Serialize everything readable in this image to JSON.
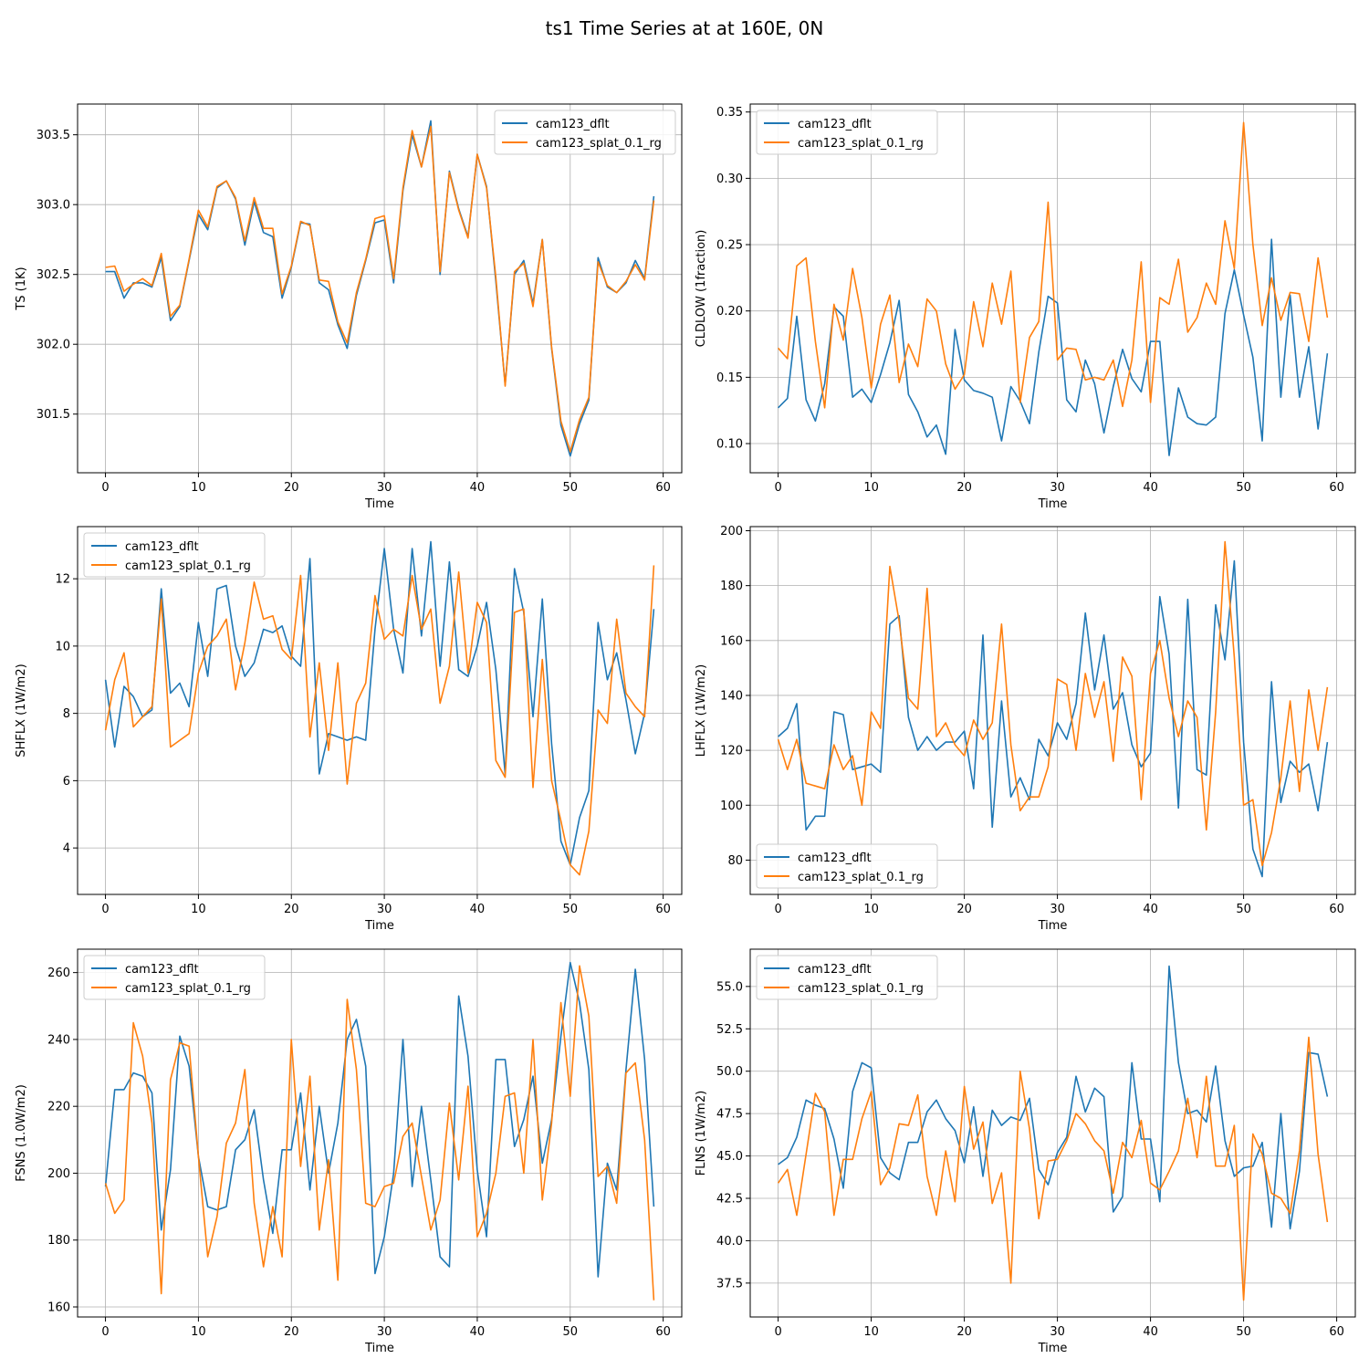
{
  "figure_title": "ts1 Time Series at at 160E, 0N",
  "colors": {
    "series1": "#1f77b4",
    "series2": "#ff7f0e",
    "grid": "#b0b0b0",
    "axis": "#000000"
  },
  "chart_data": [
    {
      "type": "line",
      "xlabel": "Time",
      "ylabel": "TS (1K)",
      "xlim": [
        -3,
        62
      ],
      "ylim": [
        301.08,
        303.72
      ],
      "xticks": [
        0,
        10,
        20,
        30,
        40,
        50,
        60
      ],
      "yticks": [
        301.5,
        302.0,
        302.5,
        303.0,
        303.5
      ],
      "ytick_labels": [
        "301.5",
        "302.0",
        "302.5",
        "303.0",
        "303.5"
      ],
      "grid": true,
      "legend": "top-right",
      "series": [
        {
          "name": "cam123_dflt",
          "values": [
            302.52,
            302.52,
            302.33,
            302.44,
            302.44,
            302.41,
            302.62,
            302.17,
            302.27,
            302.6,
            302.93,
            302.82,
            303.12,
            303.17,
            303.04,
            302.71,
            303.02,
            302.8,
            302.77,
            302.33,
            302.55,
            302.87,
            302.86,
            302.44,
            302.39,
            302.14,
            301.97,
            302.35,
            302.6,
            302.87,
            302.89,
            302.44,
            303.1,
            303.5,
            303.27,
            303.6,
            302.5,
            303.24,
            302.97,
            302.77,
            303.36,
            303.13,
            302.45,
            301.71,
            302.5,
            302.6,
            302.29,
            302.75,
            301.97,
            301.42,
            301.2,
            301.43,
            301.6,
            302.62,
            302.41,
            302.37,
            302.44,
            302.6,
            302.47,
            303.06
          ]
        },
        {
          "name": "cam123_splat_0.1_rg",
          "values": [
            302.55,
            302.56,
            302.38,
            302.43,
            302.47,
            302.42,
            302.65,
            302.2,
            302.28,
            302.61,
            302.96,
            302.84,
            303.13,
            303.17,
            303.05,
            302.74,
            303.05,
            302.83,
            302.83,
            302.36,
            302.56,
            302.88,
            302.85,
            302.46,
            302.45,
            302.16,
            302.01,
            302.37,
            302.61,
            302.9,
            302.92,
            302.47,
            303.12,
            303.53,
            303.27,
            303.56,
            302.52,
            303.23,
            302.96,
            302.76,
            303.36,
            303.12,
            302.48,
            301.7,
            302.52,
            302.58,
            302.27,
            302.75,
            301.98,
            301.45,
            301.23,
            301.46,
            301.62,
            302.59,
            302.42,
            302.37,
            302.45,
            302.57,
            302.46,
            303.03
          ]
        }
      ]
    },
    {
      "type": "line",
      "xlabel": "Time",
      "ylabel": "CLDLOW (1fraction)",
      "xlim": [
        -3,
        62
      ],
      "ylim": [
        0.078,
        0.356
      ],
      "xticks": [
        0,
        10,
        20,
        30,
        40,
        50,
        60
      ],
      "yticks": [
        0.1,
        0.15,
        0.2,
        0.25,
        0.3,
        0.35
      ],
      "ytick_labels": [
        "0.10",
        "0.15",
        "0.20",
        "0.25",
        "0.30",
        "0.35"
      ],
      "grid": true,
      "legend": "top-left",
      "series": [
        {
          "name": "cam123_dflt",
          "values": [
            0.127,
            0.134,
            0.196,
            0.133,
            0.117,
            0.145,
            0.203,
            0.196,
            0.135,
            0.141,
            0.131,
            0.152,
            0.176,
            0.208,
            0.137,
            0.124,
            0.105,
            0.114,
            0.092,
            0.186,
            0.148,
            0.14,
            0.138,
            0.135,
            0.102,
            0.143,
            0.132,
            0.115,
            0.169,
            0.211,
            0.206,
            0.133,
            0.124,
            0.163,
            0.145,
            0.108,
            0.143,
            0.171,
            0.149,
            0.139,
            0.177,
            0.177,
            0.091,
            0.142,
            0.12,
            0.115,
            0.114,
            0.12,
            0.198,
            0.231,
            0.197,
            0.165,
            0.102,
            0.254,
            0.135,
            0.212,
            0.135,
            0.173,
            0.111,
            0.168
          ]
        },
        {
          "name": "cam123_splat_0.1_rg",
          "values": [
            0.172,
            0.164,
            0.234,
            0.24,
            0.177,
            0.127,
            0.205,
            0.178,
            0.232,
            0.195,
            0.142,
            0.19,
            0.212,
            0.146,
            0.175,
            0.158,
            0.209,
            0.2,
            0.16,
            0.141,
            0.152,
            0.207,
            0.173,
            0.221,
            0.19,
            0.23,
            0.131,
            0.18,
            0.192,
            0.282,
            0.163,
            0.172,
            0.171,
            0.148,
            0.15,
            0.148,
            0.163,
            0.128,
            0.163,
            0.237,
            0.131,
            0.21,
            0.205,
            0.239,
            0.184,
            0.195,
            0.221,
            0.205,
            0.268,
            0.232,
            0.342,
            0.25,
            0.189,
            0.225,
            0.193,
            0.214,
            0.213,
            0.177,
            0.24,
            0.195
          ]
        }
      ]
    },
    {
      "type": "line",
      "xlabel": "Time",
      "ylabel": "SHFLX (1W/m2)",
      "xlim": [
        -3,
        62
      ],
      "ylim": [
        2.62,
        13.55
      ],
      "xticks": [
        0,
        10,
        20,
        30,
        40,
        50,
        60
      ],
      "yticks": [
        4,
        6,
        8,
        10,
        12
      ],
      "ytick_labels": [
        "4",
        "6",
        "8",
        "10",
        "12"
      ],
      "grid": true,
      "legend": "top-left",
      "series": [
        {
          "name": "cam123_dflt",
          "values": [
            9.0,
            7.0,
            8.8,
            8.5,
            7.9,
            8.1,
            11.7,
            8.6,
            8.9,
            8.2,
            10.7,
            9.1,
            11.7,
            11.8,
            10.0,
            9.1,
            9.5,
            10.5,
            10.4,
            10.6,
            9.7,
            9.4,
            12.6,
            6.2,
            7.4,
            7.3,
            7.2,
            7.3,
            7.2,
            10.5,
            12.9,
            10.5,
            9.2,
            12.9,
            10.3,
            13.1,
            9.4,
            12.5,
            9.3,
            9.1,
            10.0,
            11.3,
            9.3,
            6.2,
            12.3,
            11.0,
            7.9,
            11.4,
            7.1,
            4.2,
            3.5,
            4.9,
            5.7,
            10.7,
            9.0,
            9.8,
            8.4,
            6.8,
            8.0,
            11.1
          ]
        },
        {
          "name": "cam123_splat_0.1_rg",
          "values": [
            7.5,
            9.0,
            9.8,
            7.6,
            7.9,
            8.2,
            11.4,
            7.0,
            7.2,
            7.4,
            9.2,
            10.0,
            10.3,
            10.8,
            8.7,
            10.1,
            11.9,
            10.8,
            10.9,
            9.9,
            9.6,
            12.1,
            7.3,
            9.5,
            6.9,
            9.5,
            5.9,
            8.3,
            8.9,
            11.5,
            10.2,
            10.5,
            10.3,
            12.1,
            10.5,
            11.1,
            8.3,
            9.4,
            12.2,
            9.2,
            11.3,
            10.7,
            6.6,
            6.1,
            11.0,
            11.1,
            5.8,
            9.6,
            6.0,
            4.8,
            3.5,
            3.2,
            4.5,
            8.1,
            7.7,
            10.8,
            8.6,
            8.2,
            7.9,
            12.4
          ]
        }
      ]
    },
    {
      "type": "line",
      "xlabel": "Time",
      "ylabel": "LHFLX (1W/m2)",
      "xlim": [
        -3,
        62
      ],
      "ylim": [
        67.5,
        201.5
      ],
      "xticks": [
        0,
        10,
        20,
        30,
        40,
        50,
        60
      ],
      "yticks": [
        80,
        100,
        120,
        140,
        160,
        180,
        200
      ],
      "ytick_labels": [
        "80",
        "100",
        "120",
        "140",
        "160",
        "180",
        "200"
      ],
      "grid": true,
      "legend": "bottom-left",
      "series": [
        {
          "name": "cam123_dflt",
          "values": [
            125,
            128,
            137,
            91,
            96,
            96,
            134,
            133,
            113,
            114,
            115,
            112,
            166,
            169,
            132,
            120,
            125,
            120,
            123,
            123,
            127,
            106,
            162,
            92,
            138,
            103,
            110,
            102,
            124,
            118,
            130,
            124,
            137,
            170,
            142,
            162,
            135,
            141,
            122,
            114,
            119,
            176,
            155,
            99,
            175,
            113,
            111,
            173,
            153,
            189,
            123,
            84,
            74,
            145,
            101,
            116,
            112,
            115,
            98,
            123
          ]
        },
        {
          "name": "cam123_splat_0.1_rg",
          "values": [
            124,
            113,
            124,
            108,
            107,
            106,
            122,
            113,
            118,
            100,
            134,
            128,
            187,
            167,
            139,
            135,
            179,
            125,
            130,
            122,
            118,
            131,
            124,
            130,
            166,
            122,
            98,
            103,
            103,
            114,
            146,
            144,
            120,
            148,
            132,
            145,
            116,
            154,
            147,
            102,
            148,
            160,
            139,
            125,
            138,
            132,
            91,
            134,
            196,
            154,
            100,
            102,
            78,
            90,
            110,
            138,
            105,
            142,
            120,
            143
          ]
        }
      ]
    },
    {
      "type": "line",
      "xlabel": "Time",
      "ylabel": "FSNS (1.0W/m2)",
      "xlim": [
        -3,
        62
      ],
      "ylim": [
        157,
        267
      ],
      "xticks": [
        0,
        10,
        20,
        30,
        40,
        50,
        60
      ],
      "yticks": [
        160,
        180,
        200,
        220,
        240,
        260
      ],
      "ytick_labels": [
        "160",
        "180",
        "200",
        "220",
        "240",
        "260"
      ],
      "grid": true,
      "legend": "top-left",
      "series": [
        {
          "name": "cam123_dflt",
          "values": [
            196,
            225,
            225,
            230,
            229,
            224,
            183,
            201,
            241,
            232,
            205,
            190,
            189,
            190,
            207,
            210,
            219,
            198,
            182,
            207,
            207,
            224,
            195,
            220,
            200,
            215,
            240,
            246,
            232,
            170,
            181,
            200,
            240,
            196,
            220,
            198,
            175,
            172,
            253,
            235,
            201,
            181,
            234,
            234,
            208,
            216,
            229,
            203,
            216,
            241,
            263,
            251,
            231,
            169,
            203,
            195,
            231,
            261,
            234,
            190
          ]
        },
        {
          "name": "cam123_splat_0.1_rg",
          "values": [
            197,
            188,
            192,
            245,
            235,
            215,
            164,
            228,
            239,
            238,
            205,
            175,
            187,
            209,
            215,
            231,
            191,
            172,
            190,
            175,
            240,
            202,
            229,
            183,
            204,
            168,
            252,
            231,
            191,
            190,
            196,
            197,
            211,
            215,
            199,
            183,
            192,
            221,
            198,
            226,
            181,
            188,
            200,
            223,
            224,
            200,
            240,
            192,
            215,
            251,
            223,
            262,
            247,
            199,
            202,
            191,
            230,
            233,
            210,
            162
          ]
        }
      ]
    },
    {
      "type": "line",
      "xlabel": "Time",
      "ylabel": "FLNS (1W/m2)",
      "xlim": [
        -3,
        62
      ],
      "ylim": [
        35.5,
        57.2
      ],
      "xticks": [
        0,
        10,
        20,
        30,
        40,
        50,
        60
      ],
      "yticks": [
        37.5,
        40.0,
        42.5,
        45.0,
        47.5,
        50.0,
        52.5,
        55.0
      ],
      "ytick_labels": [
        "37.5",
        "40.0",
        "42.5",
        "45.0",
        "47.5",
        "50.0",
        "52.5",
        "55.0"
      ],
      "grid": true,
      "legend": "top-left",
      "series": [
        {
          "name": "cam123_dflt",
          "values": [
            44.5,
            44.9,
            46.1,
            48.3,
            48.0,
            47.8,
            46.0,
            43.1,
            48.8,
            50.5,
            50.2,
            44.9,
            44.0,
            43.6,
            45.8,
            45.8,
            47.6,
            48.3,
            47.2,
            46.5,
            44.6,
            47.9,
            43.8,
            47.7,
            46.8,
            47.3,
            47.1,
            48.4,
            44.2,
            43.3,
            45.2,
            46.1,
            49.7,
            47.6,
            49.0,
            48.5,
            41.7,
            42.6,
            50.5,
            46.0,
            46.0,
            42.3,
            56.2,
            50.5,
            47.5,
            47.7,
            47.0,
            50.3,
            45.9,
            43.8,
            44.3,
            44.4,
            45.8,
            40.8,
            47.5,
            40.7,
            44.1,
            51.1,
            51.0,
            48.5
          ]
        },
        {
          "name": "cam123_splat_0.1_rg",
          "values": [
            43.4,
            44.2,
            41.5,
            45.1,
            48.7,
            47.6,
            41.5,
            44.8,
            44.8,
            47.2,
            48.8,
            43.3,
            44.3,
            46.9,
            46.8,
            48.6,
            43.8,
            41.5,
            45.3,
            42.3,
            49.1,
            45.4,
            47.0,
            42.2,
            44.0,
            37.5,
            50.0,
            46.6,
            41.3,
            44.7,
            44.8,
            45.9,
            47.5,
            46.9,
            45.9,
            45.3,
            42.8,
            45.8,
            44.9,
            47.1,
            43.4,
            43.0,
            44.1,
            45.3,
            48.4,
            44.9,
            49.7,
            44.4,
            44.4,
            46.8,
            36.5,
            46.3,
            45.1,
            42.8,
            42.5,
            41.6,
            45.3,
            52.0,
            45.1,
            41.1
          ]
        }
      ]
    }
  ]
}
